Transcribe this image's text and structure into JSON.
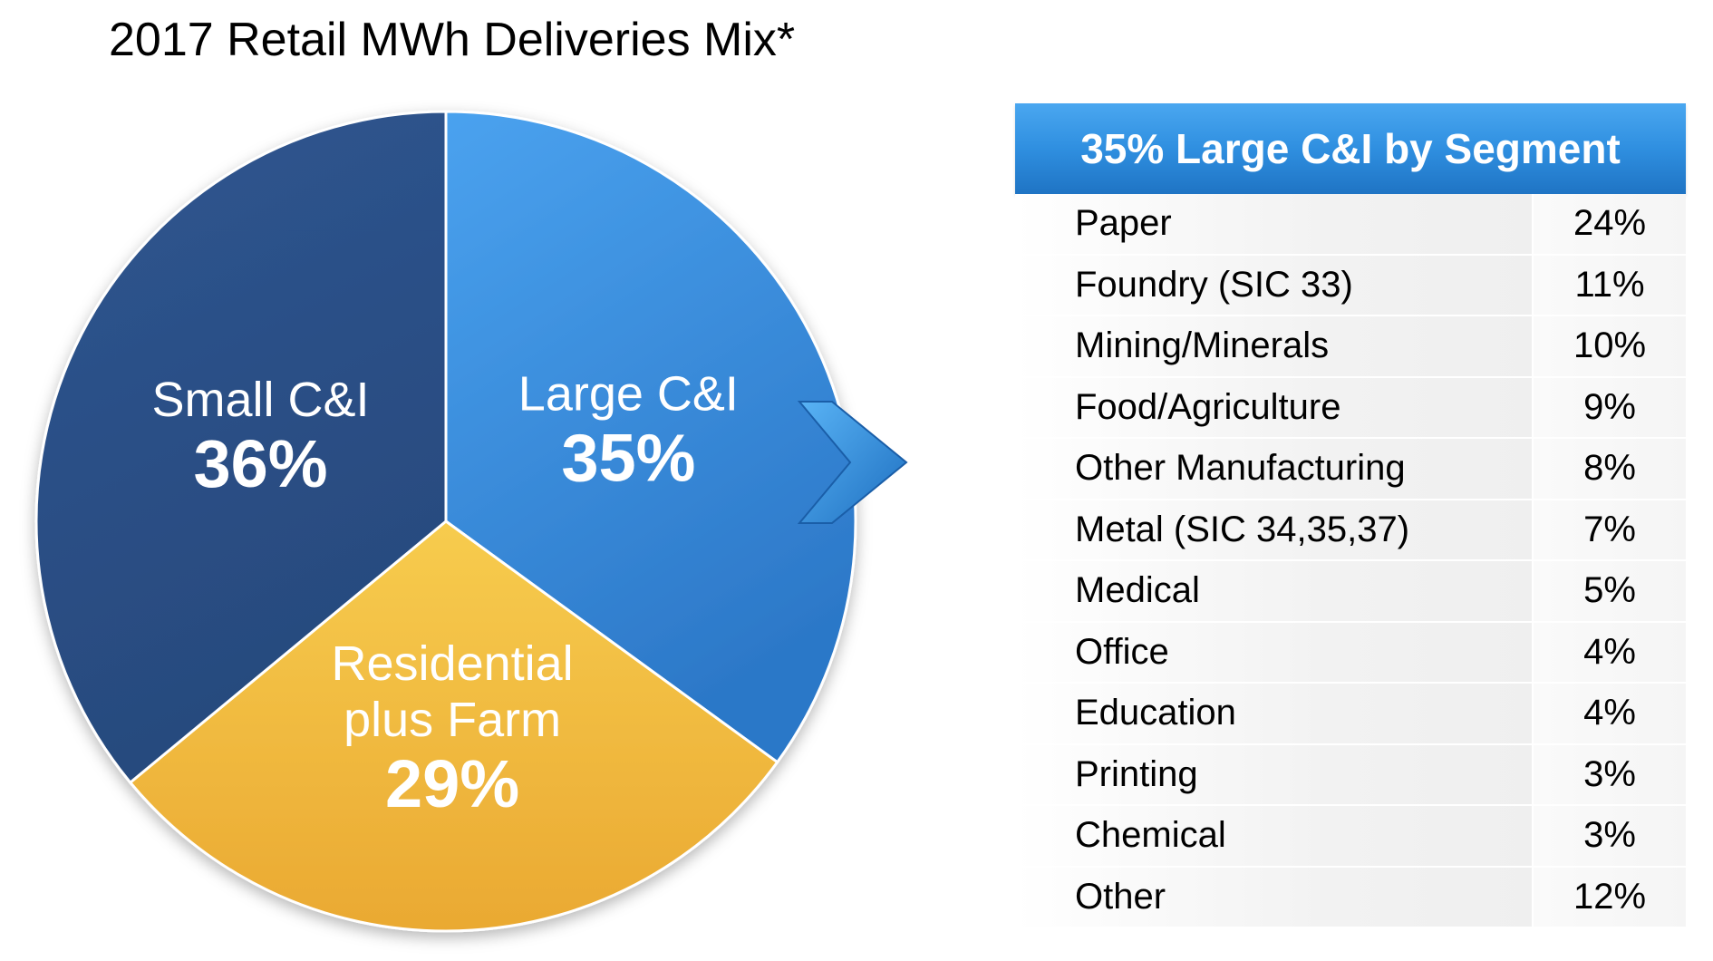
{
  "chart_data": [
    {
      "type": "pie",
      "title": "2017 Retail MWh Deliveries Mix*",
      "slices": [
        {
          "label": "Large C&I",
          "value_label": "35%",
          "value": 35,
          "color": "#3a8de0"
        },
        {
          "label": "Residential plus Farm",
          "label_lines": [
            "Residential",
            "plus Farm"
          ],
          "value_label": "29%",
          "value": 29,
          "color": "#f2bb3e"
        },
        {
          "label": "Small C&I",
          "value_label": "36%",
          "value": 36,
          "color": "#2d4f85"
        }
      ]
    },
    {
      "type": "table",
      "title": "35% Large C&I by Segment",
      "rows": [
        {
          "segment": "Paper",
          "share": "24%"
        },
        {
          "segment": "Foundry (SIC 33)",
          "share": "11%"
        },
        {
          "segment": "Mining/Minerals",
          "share": "10%"
        },
        {
          "segment": "Food/Agriculture",
          "share": "9%"
        },
        {
          "segment": "Other Manufacturing",
          "share": "8%"
        },
        {
          "segment": "Metal (SIC 34,35,37)",
          "share": "7%"
        },
        {
          "segment": "Medical",
          "share": "5%"
        },
        {
          "segment": "Office",
          "share": "4%"
        },
        {
          "segment": "Education",
          "share": "4%"
        },
        {
          "segment": "Printing",
          "share": "3%"
        },
        {
          "segment": "Chemical",
          "share": "3%"
        },
        {
          "segment": "Other",
          "share": "12%"
        }
      ]
    }
  ]
}
